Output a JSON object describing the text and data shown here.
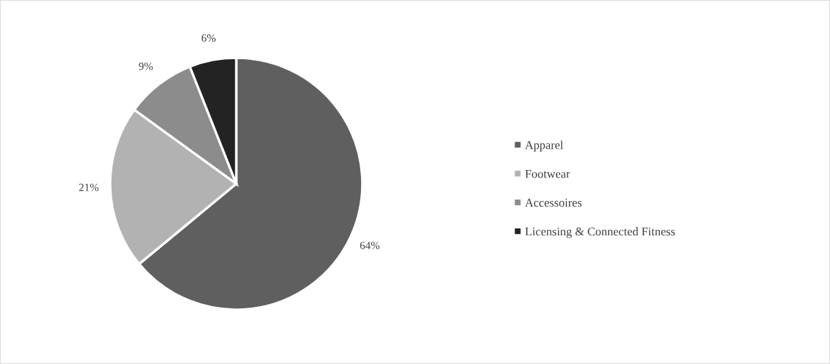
{
  "chart_data": {
    "type": "pie",
    "categories": [
      "Apparel",
      "Footwear",
      "Accessoires",
      "Licensing & Connected Fitness"
    ],
    "values": [
      64,
      21,
      9,
      6
    ],
    "colors": [
      "#5f5f5f",
      "#b2b2b2",
      "#8c8c8c",
      "#232323"
    ],
    "value_labels": [
      "64%",
      "21%",
      "9%",
      "6%"
    ],
    "legend": "right"
  }
}
